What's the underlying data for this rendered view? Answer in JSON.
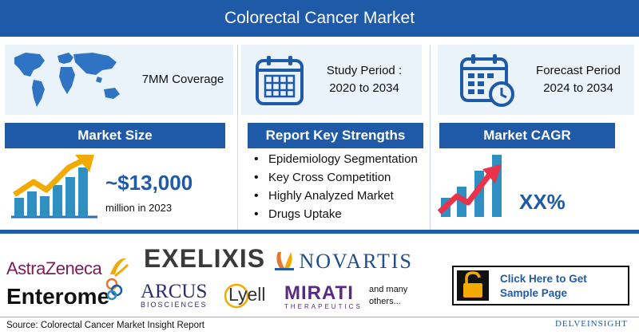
{
  "title": "Colorectal Cancer Market",
  "coverage": {
    "label": "7MM Coverage"
  },
  "study": {
    "label": "Study Period :",
    "range": "2020 to 2034"
  },
  "forecast": {
    "label": "Forecast Period",
    "range": "2024 to 2034"
  },
  "market_size": {
    "heading": "Market Size",
    "value": "~$13,000",
    "unit": "million in 2023"
  },
  "strengths": {
    "heading": "Report Key Strengths",
    "items": [
      "Epidemiology Segmentation",
      "Key Cross Competition",
      "Highly Analyzed Market",
      "Drugs Uptake"
    ]
  },
  "cagr": {
    "heading": "Market CAGR",
    "value": "XX%"
  },
  "companies": {
    "astrazeneca": "AstraZeneca",
    "exelixis": "EXELIXIS",
    "novartis": "NOVARTIS",
    "enterome": "Enterome",
    "arcus_main": "ARCUS",
    "arcus_sub": "BIOSCIENCES",
    "lyell": "Lyell",
    "mirati_main": "MIRATI",
    "mirati_sub": "THERAPEUTICS",
    "more": "and many others..."
  },
  "cta": {
    "label": "Click Here to Get Sample Page"
  },
  "footer": {
    "source": "Source: Colorectal Cancer Market Insight Report",
    "brand": "DELVEINSIGHT"
  },
  "colors": {
    "primary": "#1f5aa8",
    "card_bg": "#eaf2fa",
    "accent_red": "#e8334a",
    "accent_gold": "#f2a900",
    "accent_teal": "#2e8fc0"
  },
  "icons": [
    "world-map-icon",
    "calendar-icon",
    "calendar-clock-icon",
    "growth-chart-icon",
    "cagr-chart-icon",
    "padlock-icon"
  ]
}
